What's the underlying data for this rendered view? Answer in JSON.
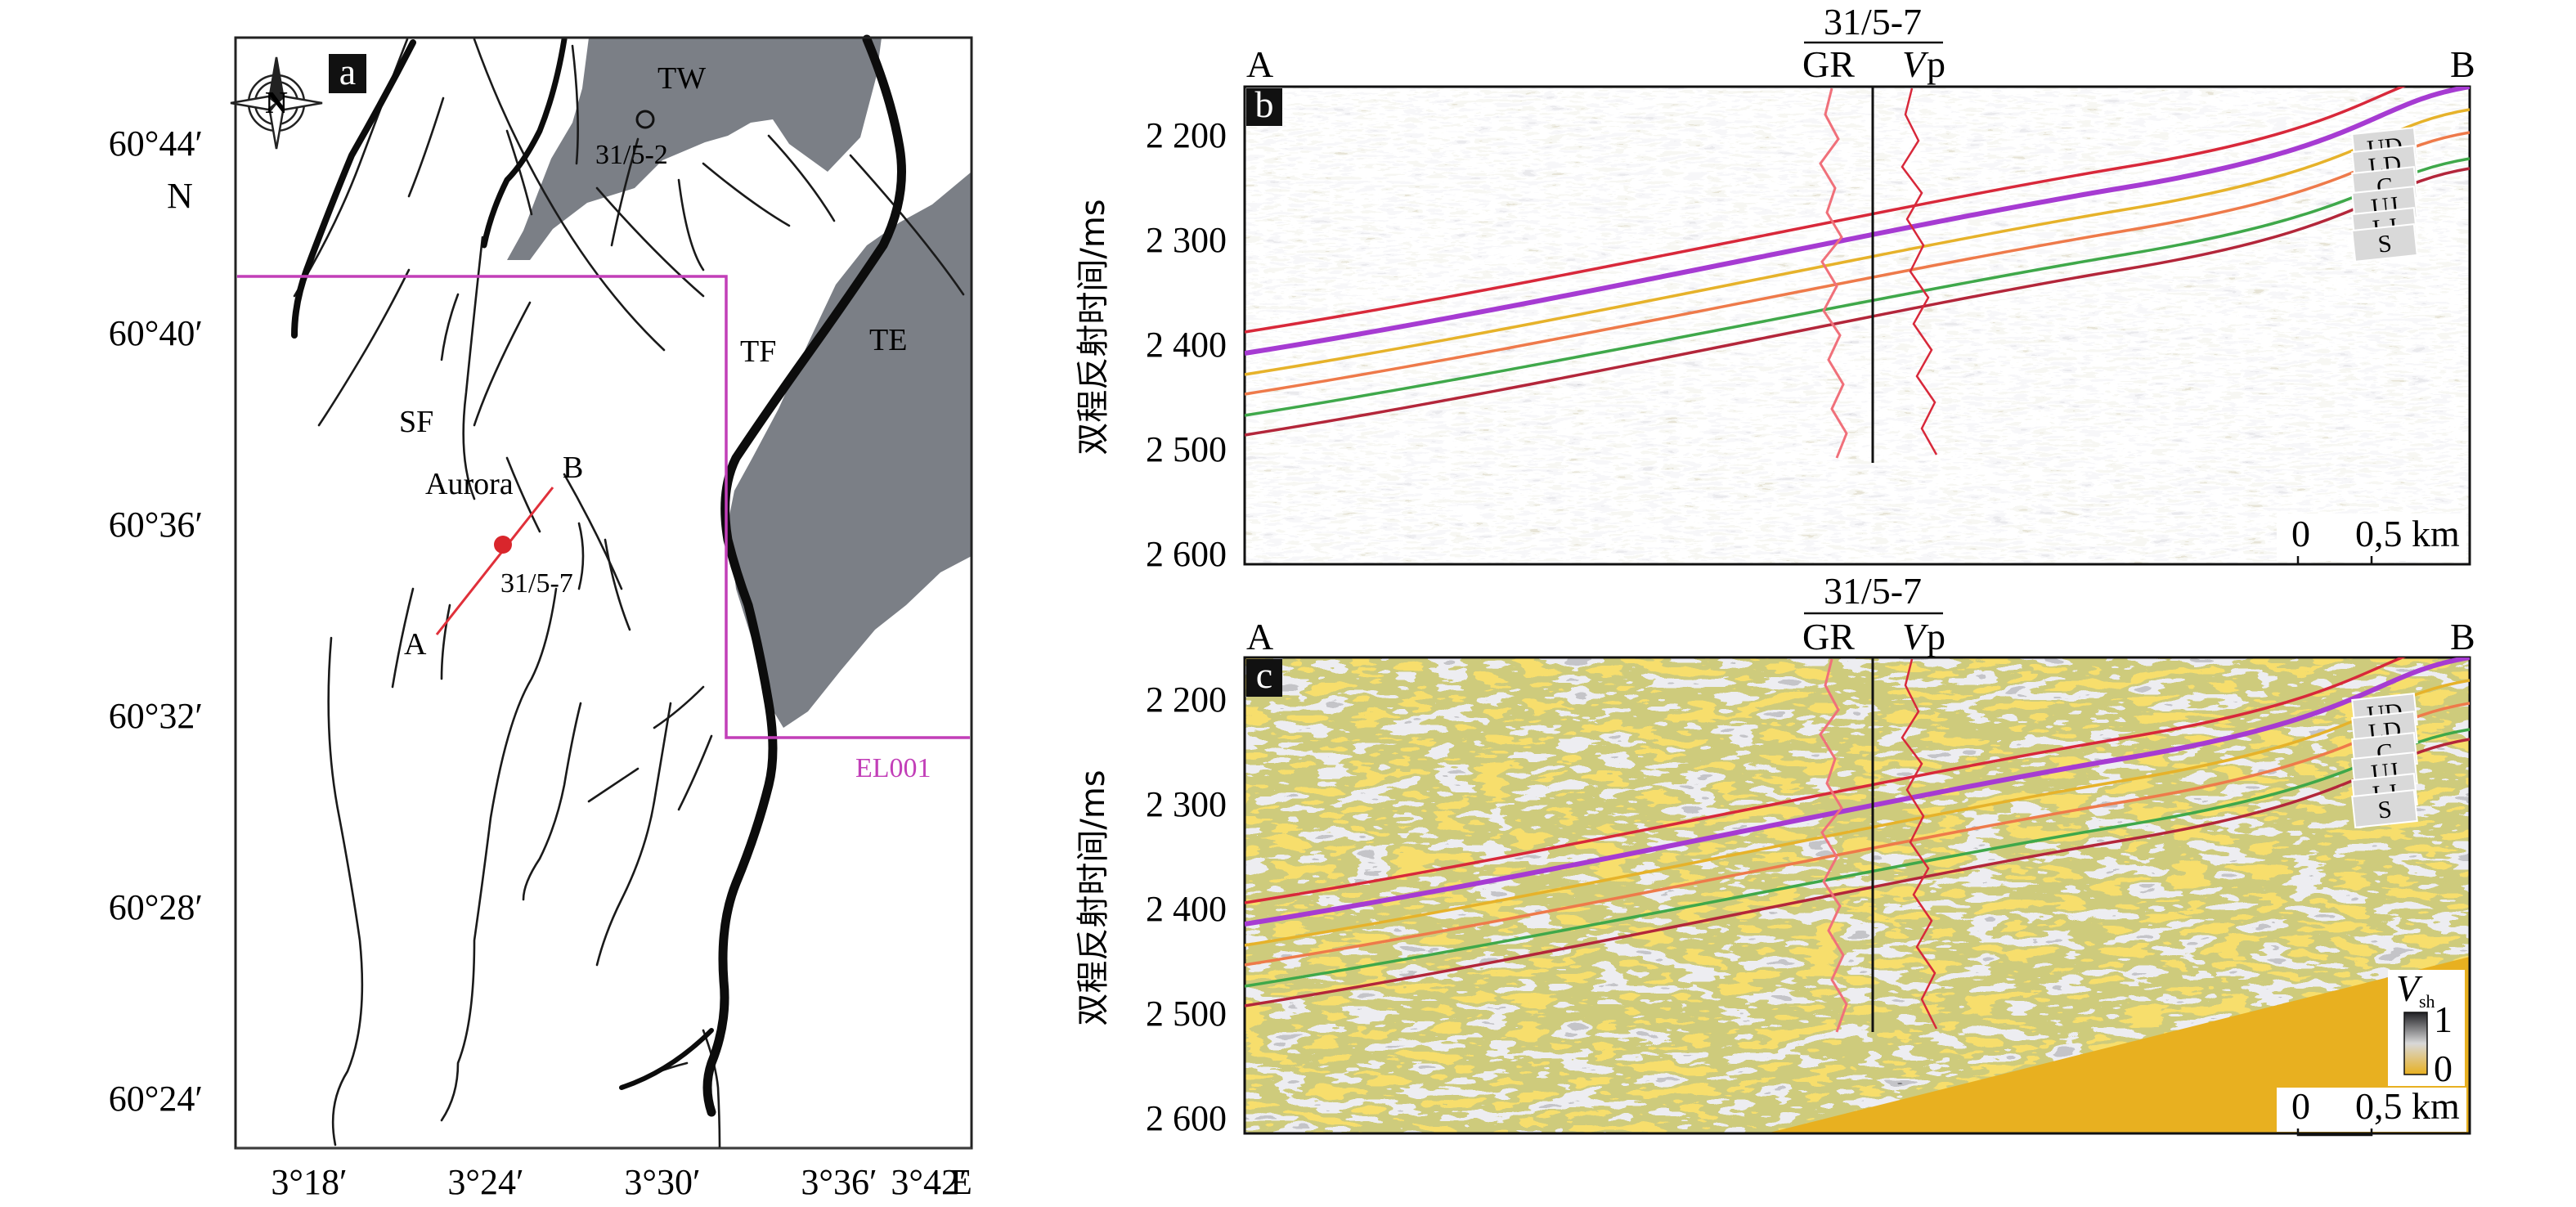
{
  "panel_a": {
    "panel_label": "a",
    "lat_ticks": [
      "60°44′",
      "60°40′",
      "60°36′",
      "60°32′",
      "60°28′",
      "60°24′"
    ],
    "lat_hemisphere": "N",
    "lon_ticks": [
      "3°18′",
      "3°24′",
      "3°30′",
      "3°36′",
      "3°42′"
    ],
    "lon_hemisphere": "E",
    "compass_letter": "N",
    "labels": {
      "tw": "TW",
      "well_312": "31/5-2",
      "te": "TE",
      "tf": "TF",
      "sf": "SF",
      "aurora": "Aurora",
      "point_a": "A",
      "point_b": "B",
      "well_317": "31/5-7",
      "licence": "EL001"
    },
    "colors": {
      "land": "#7b7f86",
      "licence_boundary": "#c23fb8",
      "section_line": "#e0303a",
      "well_marker": "#d9262c"
    }
  },
  "section": {
    "end_a": "A",
    "end_b": "B",
    "well_name": "31/5-7",
    "log_gr": "GR",
    "log_vp_italic": "V",
    "log_vp_sub": "p",
    "y_axis_label": "双程反射时间/ms",
    "y_ticks": [
      "2 200",
      "2 300",
      "2 400",
      "2 500",
      "2 600"
    ],
    "scale_zero": "0",
    "scale_value": "0,5 km",
    "horizons": [
      {
        "name": "UD",
        "color": "#d8283a"
      },
      {
        "name": "LD",
        "color": "#a63bd2"
      },
      {
        "name": "C",
        "color": "#e6b22a"
      },
      {
        "name": "UJ",
        "color": "#ee7a4a"
      },
      {
        "name": "LJ",
        "color": "#3fa84a"
      },
      {
        "name": "S",
        "color": "#b3263a"
      }
    ]
  },
  "panel_b": {
    "panel_label": "b"
  },
  "panel_c": {
    "panel_label": "c",
    "colorbar_title_italic": "V",
    "colorbar_title_sub": "sh",
    "colorbar_max": "1",
    "colorbar_min": "0"
  }
}
